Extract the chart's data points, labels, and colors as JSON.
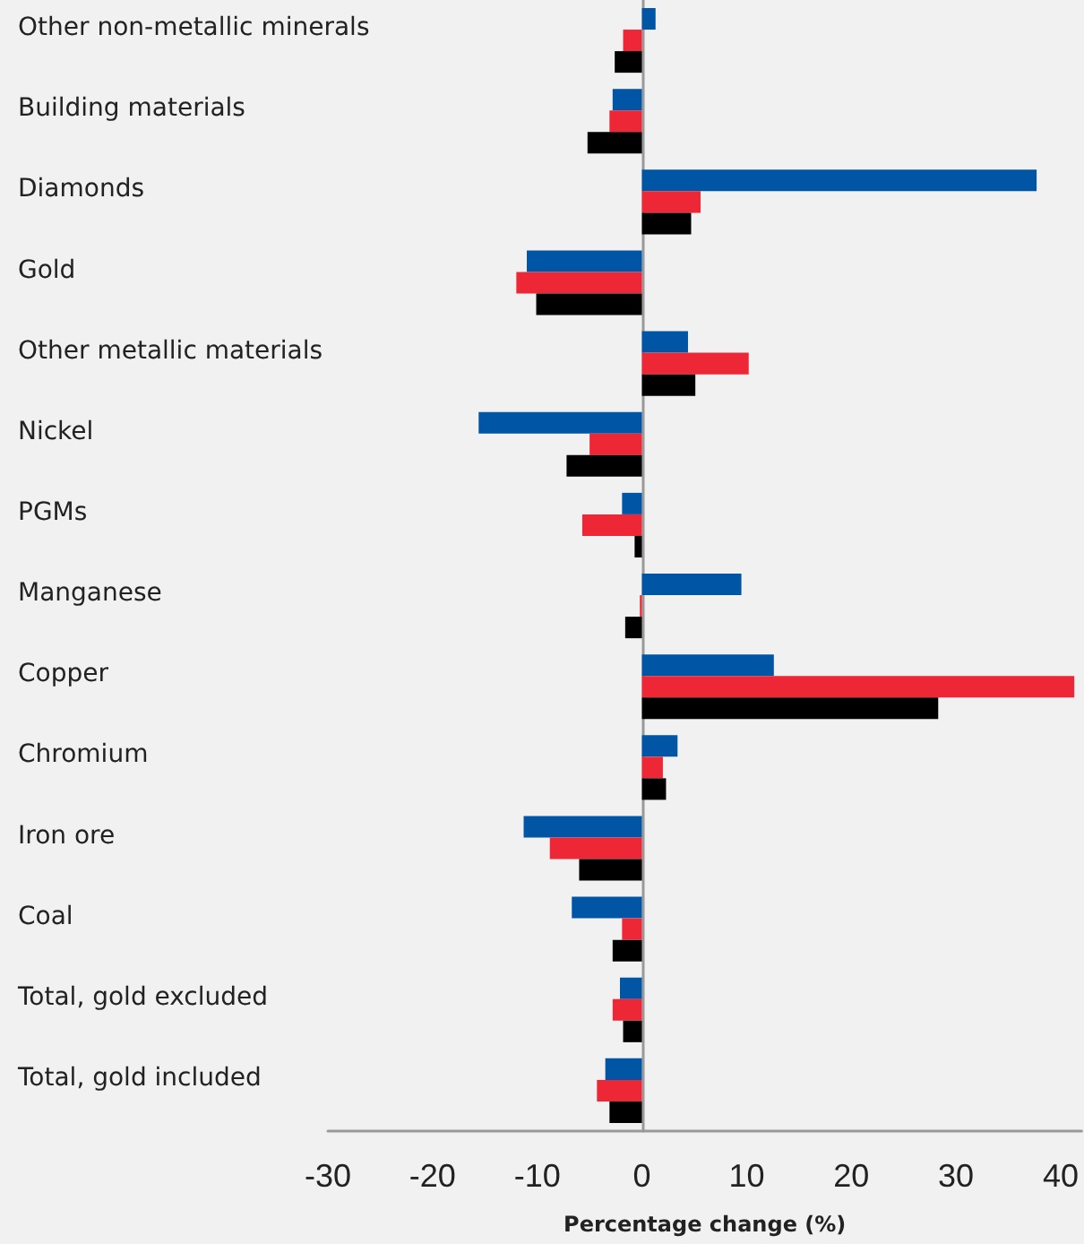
{
  "chart_data": {
    "type": "bar",
    "orientation": "horizontal",
    "xlabel": "Percentage change (%)",
    "categories": [
      "Other non-metallic minerals",
      "Building materials",
      "Diamonds",
      "Gold",
      "Other metallic materials",
      "Nickel",
      "PGMs",
      "Manganese",
      "Copper",
      "Chromium",
      "Iron ore",
      "Coal",
      "Total, gold excluded",
      "Total, gold included"
    ],
    "series": [
      {
        "color": "#0055a5",
        "values": [
          1.3,
          -2.8,
          37.7,
          -11.0,
          4.4,
          -15.6,
          -1.9,
          9.5,
          12.6,
          3.4,
          -11.3,
          -6.7,
          -2.1,
          -3.5
        ]
      },
      {
        "color": "#ee2737",
        "values": [
          -1.8,
          -3.1,
          5.6,
          -12.0,
          10.2,
          -5.0,
          -5.7,
          -0.2,
          41.3,
          2.0,
          -8.8,
          -1.9,
          -2.8,
          -4.3
        ]
      },
      {
        "color": "#000000",
        "values": [
          -2.6,
          -5.2,
          4.7,
          -10.1,
          5.1,
          -7.2,
          -0.7,
          -1.6,
          28.3,
          2.3,
          -6.0,
          -2.8,
          -1.8,
          -3.1
        ]
      }
    ],
    "xlim": [
      -30,
      42
    ],
    "xticks": [
      -30,
      -20,
      -10,
      0,
      10,
      20,
      30,
      40
    ]
  }
}
